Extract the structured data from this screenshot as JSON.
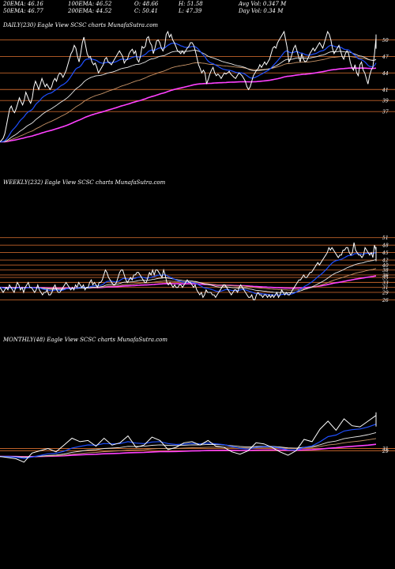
{
  "header": {
    "row1": [
      "20EMA: 46.16",
      "100EMA: 46.52",
      "O: 48.66",
      "H: 51.58",
      "Avg Vol: 0.347 M"
    ],
    "row2": [
      "50EMA: 46.77",
      "200EMA: 44.52",
      "C: 50.41",
      "L: 47.39",
      "Day Vol: 0.34 M"
    ]
  },
  "colors": {
    "background": "#000000",
    "level_line": "#c0622a",
    "price": "#ffffff",
    "ema20": "#1f4fff",
    "ema50": "#e8e8e8",
    "ema100": "#c89468",
    "ema200": "#ff40ff",
    "trend": "#ff5aff",
    "thin_bands": "#a07030"
  },
  "chart_data": [
    {
      "type": "line",
      "title": "DAILY(230) Eagle  View  SCSC charts MunafaSutra.com",
      "levels": [
        50,
        47,
        44,
        41,
        39,
        37
      ],
      "ylim": [
        30,
        51.5
      ],
      "n": 230,
      "series": [
        {
          "key": "price",
          "values": [
            31.5,
            31.8,
            32.2,
            33.0,
            34.5,
            36.0,
            37.5,
            38.0,
            37.2,
            36.8,
            37.5,
            38.5,
            39.5,
            38.8,
            38.2,
            39.0,
            40.5,
            39.8,
            39.0,
            38.5,
            39.5,
            41.5,
            42.5,
            41.8,
            41.0,
            42.0,
            43.0,
            42.2,
            41.5,
            42.0,
            41.5,
            41.0,
            41.5,
            42.5,
            43.0,
            42.5,
            43.5,
            44.0,
            43.8,
            43.2,
            43.8,
            44.5,
            45.5,
            46.5,
            47.5,
            48.0,
            49.0,
            48.5,
            47.0,
            46.0,
            47.5,
            49.5,
            50.5,
            49.0,
            47.5,
            46.8,
            47.0,
            46.0,
            45.5,
            45.8,
            45.0,
            44.0,
            44.5,
            45.0,
            45.5,
            46.5,
            46.8,
            46.0,
            45.8,
            45.5,
            46.0,
            46.5,
            47.0,
            47.5,
            48.0,
            47.5,
            47.0,
            45.8,
            46.3,
            46.5,
            47.5,
            48.0,
            48.3,
            47.5,
            48.0,
            46.5,
            46.0,
            47.0,
            48.8,
            48.5,
            48.8,
            50.3,
            50.6,
            49.5,
            49.0,
            47.5,
            48.5,
            49.8,
            50.0,
            49.5,
            48.5,
            48.0,
            48.8,
            51.0,
            51.5,
            50.5,
            51.0,
            50.0,
            49.5,
            48.8,
            48.0,
            47.8,
            47.5,
            48.0,
            47.5,
            48.0,
            48.5,
            48.8,
            49.5,
            49.5,
            49.0,
            48.0,
            46.8,
            45.5,
            44.8,
            44.0,
            44.5,
            44.0,
            42.0,
            42.8,
            43.8,
            44.5,
            45.0,
            44.0,
            43.5,
            43.8,
            43.5,
            43.0,
            43.5,
            44.0,
            43.8,
            44.0,
            44.3,
            43.8,
            43.5,
            43.2,
            43.0,
            43.5,
            44.0,
            43.8,
            43.5,
            43.0,
            42.5,
            41.5,
            41.0,
            41.5,
            42.5,
            43.5,
            44.0,
            44.5,
            44.8,
            45.5,
            45.0,
            45.5,
            46.0,
            45.5,
            46.0,
            46.5,
            47.5,
            48.5,
            48.8,
            48.5,
            49.5,
            50.0,
            50.5,
            51.0,
            51.5,
            50.0,
            48.5,
            46.0,
            46.5,
            47.5,
            48.5,
            49.0,
            48.0,
            47.0,
            46.0,
            47.5,
            46.5,
            46.0,
            46.2,
            46.8,
            47.5,
            48.0,
            48.5,
            48.0,
            48.5,
            49.0,
            49.5,
            49.0,
            48.5,
            49.5,
            50.5,
            51.5,
            51.0,
            50.0,
            48.5,
            47.5,
            48.0,
            48.5,
            49.0,
            48.0,
            47.0,
            46.5,
            47.5,
            48.0,
            47.5,
            46.0,
            45.0,
            44.5,
            45.5,
            44.0,
            43.5,
            45.5,
            46.0,
            44.5,
            44.0,
            43.0,
            42.0,
            43.5,
            44.5,
            45.0,
            47.4,
            50.41
          ]
        }
      ]
    },
    {
      "type": "line",
      "title": "WEEKLY(232) Eagle  View  SCSC charts MunafaSutra.com",
      "levels": [
        51,
        48,
        45,
        42,
        40,
        38,
        36,
        35,
        33,
        31,
        29,
        26
      ],
      "ylim": [
        22,
        52.5
      ],
      "n": 232,
      "series": [
        {
          "key": "price",
          "values": [
            31,
            30,
            29,
            30,
            31,
            30,
            32,
            31,
            30,
            29,
            31,
            33,
            32,
            30,
            31,
            29,
            31,
            32,
            33,
            31,
            31,
            30,
            29,
            30,
            32,
            30,
            29,
            28,
            29,
            29,
            30,
            28,
            28,
            29,
            31,
            32,
            30,
            29,
            29,
            30,
            31,
            32,
            33,
            32,
            31,
            30,
            31,
            30,
            32,
            31,
            33,
            32,
            31,
            32,
            30,
            31,
            31,
            33,
            34,
            32,
            33,
            32,
            31,
            33,
            33,
            34,
            36,
            38,
            37,
            35,
            34,
            33,
            32,
            32,
            33,
            35,
            37,
            38,
            38,
            36,
            34,
            33,
            34,
            35,
            34,
            36,
            36,
            37,
            37,
            36,
            35,
            34,
            33,
            33,
            35,
            37,
            36,
            38,
            36,
            38,
            38,
            37,
            36,
            35,
            38,
            36,
            33,
            32,
            33,
            32,
            31,
            32,
            31,
            31,
            32,
            32,
            31,
            32,
            33,
            34,
            33,
            33,
            32,
            31,
            32,
            30,
            29,
            28,
            29,
            27,
            28,
            30,
            29,
            29,
            29,
            28,
            28,
            27,
            28,
            29,
            30,
            31,
            32,
            32,
            31,
            30,
            29,
            28,
            29,
            30,
            30,
            29,
            31,
            32,
            31,
            30,
            29,
            28,
            27,
            27,
            28,
            26,
            26,
            28,
            29,
            28,
            28,
            27,
            28,
            28,
            27,
            28,
            27,
            28,
            27,
            28,
            29,
            27,
            28,
            30,
            29,
            28,
            29,
            28,
            28,
            29,
            30,
            31,
            32,
            33,
            34,
            34,
            35,
            36,
            35,
            35,
            36,
            37,
            37,
            38,
            39,
            40,
            41,
            40,
            41,
            42,
            43,
            44,
            45,
            47,
            46,
            47,
            46,
            45,
            44,
            43,
            44,
            44,
            46,
            46,
            47,
            47,
            45,
            44,
            45,
            49,
            46,
            45,
            44,
            44,
            43,
            44,
            47,
            46,
            45,
            44,
            45,
            43,
            48,
            46
          ]
        }
      ]
    },
    {
      "type": "line",
      "title": "MONTHLY(48) Eagle  View  SCSC charts MunafaSutra.com",
      "levels": [
        31,
        29
      ],
      "ylim": [
        14,
        82
      ],
      "n": 48,
      "series": [
        {
          "key": "price",
          "values": [
            24,
            23,
            22,
            19,
            27,
            29,
            31,
            28,
            34,
            40,
            37,
            38,
            33,
            40,
            34,
            36,
            42,
            32,
            34,
            41,
            38,
            30,
            32,
            36,
            37,
            34,
            38,
            33,
            32,
            28,
            26,
            29,
            36,
            35,
            32,
            28,
            25,
            29,
            39,
            37,
            48,
            55,
            47,
            57,
            51,
            50,
            55,
            60
          ]
        }
      ]
    }
  ]
}
